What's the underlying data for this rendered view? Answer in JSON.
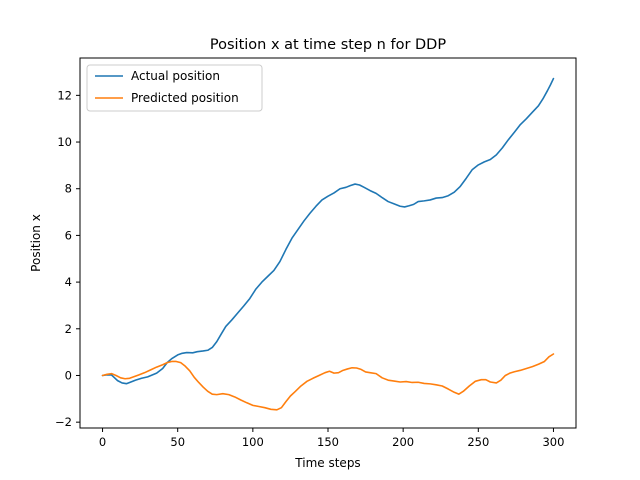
{
  "chart_data": {
    "type": "line",
    "title": "Position x at time step n for DDP",
    "xlabel": "Time steps",
    "ylabel": "Position x",
    "xlim": [
      -15,
      315
    ],
    "ylim": [
      -2.25,
      13.6
    ],
    "xticks": [
      0,
      50,
      100,
      150,
      200,
      250,
      300
    ],
    "yticks": [
      -2,
      0,
      2,
      4,
      6,
      8,
      10,
      12
    ],
    "grid": false,
    "legend_position": "top-left",
    "series": [
      {
        "name": "Actual position",
        "color": "#1f77b4",
        "points": [
          [
            0,
            0
          ],
          [
            3,
            0.03
          ],
          [
            6,
            0.02
          ],
          [
            8,
            -0.1
          ],
          [
            10,
            -0.22
          ],
          [
            13,
            -0.32
          ],
          [
            16,
            -0.35
          ],
          [
            18,
            -0.3
          ],
          [
            22,
            -0.2
          ],
          [
            26,
            -0.12
          ],
          [
            30,
            -0.06
          ],
          [
            33,
            0.02
          ],
          [
            36,
            0.1
          ],
          [
            40,
            0.3
          ],
          [
            43,
            0.55
          ],
          [
            46,
            0.72
          ],
          [
            50,
            0.88
          ],
          [
            53,
            0.95
          ],
          [
            56,
            0.98
          ],
          [
            60,
            0.97
          ],
          [
            63,
            1.02
          ],
          [
            67,
            1.05
          ],
          [
            70,
            1.08
          ],
          [
            73,
            1.2
          ],
          [
            76,
            1.45
          ],
          [
            79,
            1.78
          ],
          [
            82,
            2.1
          ],
          [
            86,
            2.38
          ],
          [
            90,
            2.68
          ],
          [
            94,
            2.98
          ],
          [
            98,
            3.3
          ],
          [
            102,
            3.7
          ],
          [
            106,
            4.0
          ],
          [
            110,
            4.25
          ],
          [
            114,
            4.5
          ],
          [
            118,
            4.88
          ],
          [
            122,
            5.4
          ],
          [
            126,
            5.88
          ],
          [
            130,
            6.25
          ],
          [
            134,
            6.62
          ],
          [
            138,
            6.95
          ],
          [
            142,
            7.25
          ],
          [
            146,
            7.52
          ],
          [
            150,
            7.68
          ],
          [
            154,
            7.82
          ],
          [
            158,
            8.0
          ],
          [
            162,
            8.06
          ],
          [
            165,
            8.14
          ],
          [
            168,
            8.2
          ],
          [
            171,
            8.16
          ],
          [
            174,
            8.06
          ],
          [
            178,
            7.92
          ],
          [
            182,
            7.8
          ],
          [
            186,
            7.62
          ],
          [
            190,
            7.45
          ],
          [
            194,
            7.35
          ],
          [
            198,
            7.25
          ],
          [
            201,
            7.22
          ],
          [
            204,
            7.27
          ],
          [
            207,
            7.33
          ],
          [
            210,
            7.45
          ],
          [
            214,
            7.48
          ],
          [
            218,
            7.52
          ],
          [
            222,
            7.6
          ],
          [
            226,
            7.62
          ],
          [
            230,
            7.7
          ],
          [
            234,
            7.85
          ],
          [
            238,
            8.1
          ],
          [
            242,
            8.45
          ],
          [
            246,
            8.82
          ],
          [
            250,
            9.02
          ],
          [
            254,
            9.15
          ],
          [
            258,
            9.25
          ],
          [
            262,
            9.45
          ],
          [
            266,
            9.75
          ],
          [
            270,
            10.1
          ],
          [
            274,
            10.42
          ],
          [
            278,
            10.75
          ],
          [
            282,
            11.0
          ],
          [
            286,
            11.28
          ],
          [
            290,
            11.55
          ],
          [
            293,
            11.85
          ],
          [
            296,
            12.2
          ],
          [
            298,
            12.45
          ],
          [
            300,
            12.72
          ]
        ]
      },
      {
        "name": "Predicted position",
        "color": "#ff7f0e",
        "points": [
          [
            0,
            0
          ],
          [
            3,
            0.05
          ],
          [
            6,
            0.08
          ],
          [
            9,
            0.0
          ],
          [
            12,
            -0.1
          ],
          [
            15,
            -0.14
          ],
          [
            18,
            -0.12
          ],
          [
            21,
            -0.05
          ],
          [
            24,
            0.02
          ],
          [
            28,
            0.12
          ],
          [
            32,
            0.24
          ],
          [
            36,
            0.36
          ],
          [
            40,
            0.46
          ],
          [
            43,
            0.55
          ],
          [
            46,
            0.6
          ],
          [
            49,
            0.6
          ],
          [
            52,
            0.55
          ],
          [
            55,
            0.4
          ],
          [
            58,
            0.2
          ],
          [
            61,
            -0.08
          ],
          [
            64,
            -0.3
          ],
          [
            67,
            -0.5
          ],
          [
            70,
            -0.68
          ],
          [
            73,
            -0.8
          ],
          [
            76,
            -0.82
          ],
          [
            80,
            -0.78
          ],
          [
            84,
            -0.82
          ],
          [
            88,
            -0.92
          ],
          [
            92,
            -1.05
          ],
          [
            96,
            -1.17
          ],
          [
            100,
            -1.28
          ],
          [
            104,
            -1.33
          ],
          [
            108,
            -1.38
          ],
          [
            112,
            -1.45
          ],
          [
            116,
            -1.47
          ],
          [
            119,
            -1.38
          ],
          [
            122,
            -1.12
          ],
          [
            125,
            -0.88
          ],
          [
            128,
            -0.7
          ],
          [
            132,
            -0.45
          ],
          [
            136,
            -0.25
          ],
          [
            140,
            -0.12
          ],
          [
            144,
            0.0
          ],
          [
            148,
            0.12
          ],
          [
            151,
            0.18
          ],
          [
            154,
            0.1
          ],
          [
            157,
            0.12
          ],
          [
            160,
            0.22
          ],
          [
            163,
            0.28
          ],
          [
            166,
            0.33
          ],
          [
            169,
            0.32
          ],
          [
            172,
            0.26
          ],
          [
            175,
            0.15
          ],
          [
            178,
            0.12
          ],
          [
            182,
            0.08
          ],
          [
            186,
            -0.1
          ],
          [
            190,
            -0.2
          ],
          [
            194,
            -0.24
          ],
          [
            198,
            -0.28
          ],
          [
            202,
            -0.26
          ],
          [
            206,
            -0.3
          ],
          [
            210,
            -0.29
          ],
          [
            214,
            -0.34
          ],
          [
            218,
            -0.36
          ],
          [
            222,
            -0.4
          ],
          [
            226,
            -0.45
          ],
          [
            230,
            -0.58
          ],
          [
            234,
            -0.72
          ],
          [
            237,
            -0.8
          ],
          [
            240,
            -0.68
          ],
          [
            244,
            -0.45
          ],
          [
            248,
            -0.25
          ],
          [
            252,
            -0.18
          ],
          [
            255,
            -0.18
          ],
          [
            258,
            -0.28
          ],
          [
            262,
            -0.32
          ],
          [
            265,
            -0.2
          ],
          [
            268,
            0.0
          ],
          [
            271,
            0.1
          ],
          [
            274,
            0.16
          ],
          [
            278,
            0.22
          ],
          [
            282,
            0.3
          ],
          [
            286,
            0.38
          ],
          [
            290,
            0.48
          ],
          [
            294,
            0.6
          ],
          [
            297,
            0.8
          ],
          [
            300,
            0.92
          ]
        ]
      }
    ]
  }
}
